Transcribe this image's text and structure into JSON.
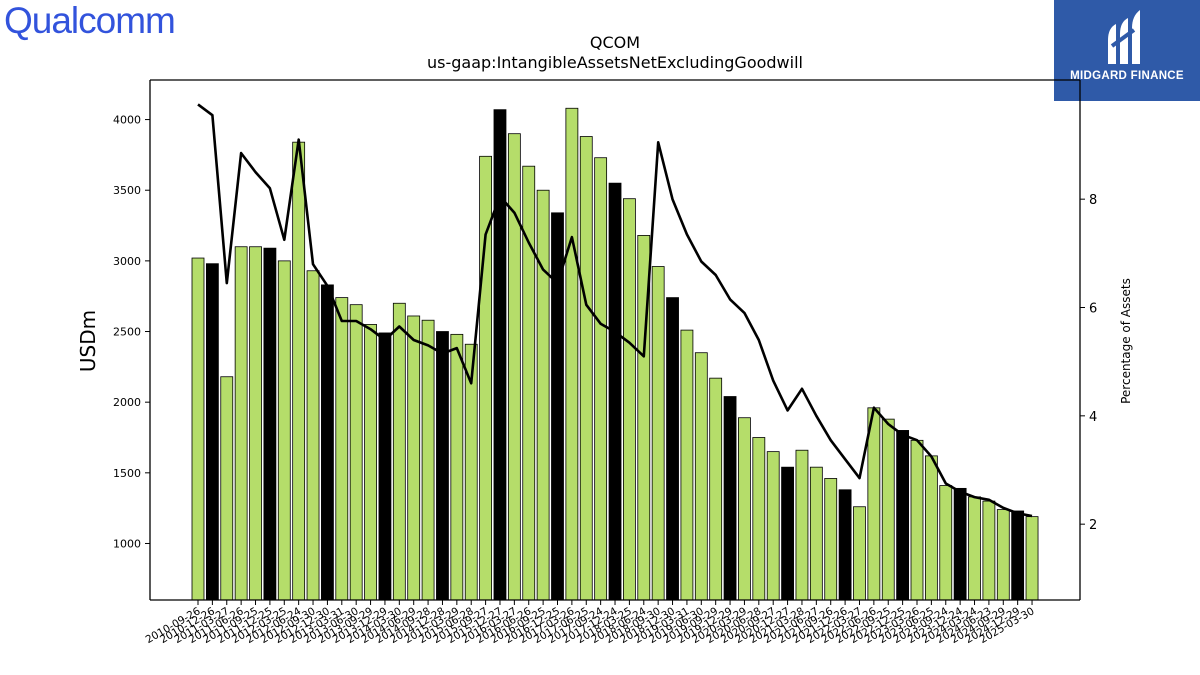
{
  "logo": {
    "text": "Qualcomm"
  },
  "badge": {
    "text": "MIDGARD FINANCE"
  },
  "chart_data": {
    "type": "bar",
    "title": "QCOM",
    "subtitle": "us-gaap:IntangibleAssetsNetExcludingGoodwill",
    "ylabel": "USDm",
    "y2label": "Percentage of Assets",
    "ylim": [
      600,
      4280
    ],
    "y2lim": [
      0.6,
      10.2
    ],
    "yticks": [
      1000,
      1500,
      2000,
      2500,
      3000,
      3500,
      4000
    ],
    "y2ticks": [
      2,
      4,
      6,
      8
    ],
    "colors": {
      "quarterly": "#b5dd6a",
      "annual": "#000000",
      "line": "#000000"
    },
    "x_tick_labels": [
      "2010-09-26",
      "2010-12-26",
      "2011-03-27",
      "2011-06-26",
      "2011-09-25",
      "2011-12-25",
      "2012-03-25",
      "2012-06-24",
      "2012-09-30",
      "2012-12-30",
      "2013-03-31",
      "2013-06-30",
      "2013-09-29",
      "2013-12-29",
      "2014-03-30",
      "2014-06-29",
      "2014-09-28",
      "2014-12-28",
      "2015-03-29",
      "2015-06-28",
      "2015-09-27",
      "2015-12-27",
      "2016-03-27",
      "2016-06-26",
      "2016-09-25",
      "2016-12-25",
      "2017-03-26",
      "2017-06-25",
      "2017-09-24",
      "2017-12-24",
      "2018-03-25",
      "2018-06-24",
      "2018-09-30",
      "2018-12-30",
      "2019-03-31",
      "2019-06-30",
      "2019-09-29",
      "2019-12-29",
      "2020-03-29",
      "2020-06-28",
      "2020-09-27",
      "2020-12-27",
      "2021-03-28",
      "2021-06-27",
      "2021-09-26",
      "2021-12-26",
      "2022-03-27",
      "2022-06-26",
      "2022-09-25",
      "2022-12-25",
      "2023-03-26",
      "2023-06-25",
      "2023-09-24",
      "2023-12-24",
      "2024-03-24",
      "2024-06-23",
      "2024-09-29",
      "2024-12-29",
      "2025-03-30"
    ],
    "bar_categories": [
      "2010-09-26",
      "2010-12-26",
      "2011-03-27",
      "2011-06-26",
      "2011-09-25",
      "2011-12-25",
      "2012-03-25",
      "2012-06-24",
      "2012-09-30",
      "2012-12-30",
      "2013-03-31",
      "2013-06-30",
      "2013-09-29",
      "2013-12-29",
      "2014-03-30",
      "2014-06-29",
      "2014-09-28",
      "2014-12-28",
      "2015-03-29",
      "2015-06-28",
      "2015-09-27",
      "2015-12-27",
      "2016-03-27",
      "2016-06-26",
      "2016-09-25",
      "2016-12-25",
      "2017-03-26",
      "2017-06-25",
      "2017-09-24",
      "2017-12-24",
      "2018-03-25",
      "2018-06-24",
      "2018-09-30",
      "2018-12-30",
      "2019-03-31",
      "2019-06-30",
      "2019-09-29",
      "2019-12-29",
      "2020-03-29",
      "2020-06-28",
      "2020-09-27",
      "2020-12-27",
      "2021-03-28",
      "2021-06-27",
      "2021-09-26",
      "2021-12-26",
      "2022-03-27",
      "2022-06-26",
      "2022-09-25",
      "2022-12-25",
      "2023-03-26",
      "2023-06-25",
      "2023-09-24",
      "2023-12-24",
      "2024-03-24",
      "2024-06-23",
      "2024-09-29",
      "2024-12-29"
    ],
    "values": [
      3020,
      2980,
      2180,
      3100,
      3100,
      3090,
      3000,
      3840,
      2930,
      2830,
      2740,
      2690,
      2550,
      2490,
      2700,
      2610,
      2580,
      2500,
      2480,
      2410,
      3740,
      4070,
      3900,
      3670,
      3500,
      3340,
      4080,
      3880,
      3730,
      3550,
      3440,
      3180,
      2960,
      2740,
      2510,
      2350,
      2170,
      2040,
      1890,
      1750,
      1650,
      1540,
      1660,
      1540,
      1460,
      1380,
      1260,
      1960,
      1880,
      1800,
      1730,
      1620,
      1410,
      1390,
      1330,
      1300,
      1240,
      1230
    ],
    "annual": [
      false,
      true,
      false,
      false,
      false,
      true,
      false,
      false,
      false,
      true,
      false,
      false,
      false,
      true,
      false,
      false,
      false,
      true,
      false,
      false,
      false,
      true,
      false,
      false,
      false,
      true,
      false,
      false,
      false,
      true,
      false,
      false,
      false,
      true,
      false,
      false,
      false,
      true,
      false,
      false,
      false,
      true,
      false,
      false,
      false,
      true,
      false,
      false,
      false,
      true,
      false,
      false,
      false,
      true,
      false,
      false,
      false,
      true
    ],
    "bars_extra": {
      "category": "2025-03-30",
      "value": 1190
    },
    "line_values": [
      9.75,
      9.55,
      6.45,
      8.85,
      8.5,
      8.2,
      7.25,
      9.1,
      6.8,
      6.4,
      5.75,
      5.75,
      5.6,
      5.4,
      5.65,
      5.4,
      5.3,
      5.15,
      5.25,
      4.6,
      7.35,
      8.05,
      7.75,
      7.2,
      6.7,
      6.45,
      7.3,
      6.05,
      5.7,
      5.55,
      5.35,
      5.1,
      9.05,
      8.0,
      7.35,
      6.85,
      6.6,
      6.15,
      5.9,
      5.4,
      4.65,
      4.1,
      4.5,
      4.0,
      3.55,
      3.2,
      2.85,
      4.15,
      3.85,
      3.65,
      3.55,
      3.25,
      2.75,
      2.6,
      2.5,
      2.45,
      2.3,
      2.2,
      2.15
    ]
  }
}
